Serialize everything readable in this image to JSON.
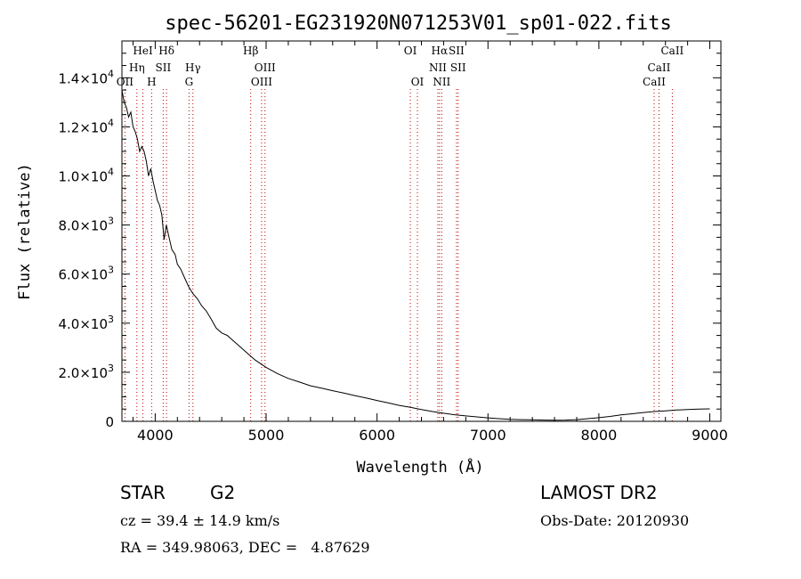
{
  "chart_data": {
    "type": "line",
    "title": "spec-56201-EG231920N071253V01_sp01-022.fits",
    "xlabel": "Wavelength (Å)",
    "ylabel": "Flux (relative)",
    "xlim": [
      3700,
      9100
    ],
    "ylim": [
      0,
      15500
    ],
    "x_ticks": [
      4000,
      5000,
      6000,
      7000,
      8000,
      9000
    ],
    "x_tick_labels": [
      "4000",
      "5000",
      "6000",
      "7000",
      "8000",
      "9000"
    ],
    "y_ticks": [
      {
        "value": 0,
        "mantissa": "0",
        "exp": ""
      },
      {
        "value": 2000,
        "mantissa": "2.0×10",
        "exp": "3"
      },
      {
        "value": 4000,
        "mantissa": "4.0×10",
        "exp": "3"
      },
      {
        "value": 6000,
        "mantissa": "6.0×10",
        "exp": "3"
      },
      {
        "value": 8000,
        "mantissa": "8.0×10",
        "exp": "3"
      },
      {
        "value": 10000,
        "mantissa": "1.0×10",
        "exp": "4"
      },
      {
        "value": 12000,
        "mantissa": "1.2×10",
        "exp": "4"
      },
      {
        "value": 14000,
        "mantissa": "1.4×10",
        "exp": "4"
      }
    ],
    "grid": false,
    "line_color": "#000000",
    "marker_color": "#c00000",
    "series": [
      {
        "x": [
          3700,
          3720,
          3740,
          3760,
          3780,
          3800,
          3820,
          3840,
          3860,
          3880,
          3900,
          3920,
          3940,
          3960,
          3980,
          4000,
          4020,
          4040,
          4060,
          4080,
          4100,
          4120,
          4150,
          4180,
          4200,
          4230,
          4260,
          4300,
          4340,
          4380,
          4420,
          4460,
          4500,
          4550,
          4600,
          4650,
          4700,
          4750,
          4800,
          4850,
          4900,
          4950,
          5000,
          5100,
          5200,
          5300,
          5400,
          5500,
          5600,
          5700,
          5800,
          5900,
          6000,
          6100,
          6200,
          6300,
          6400,
          6500,
          6600,
          6700,
          6800,
          6900,
          7000,
          7100,
          7200,
          7300,
          7400,
          7500,
          7600,
          7700,
          7800,
          7900,
          8000,
          8100,
          8200,
          8300,
          8400,
          8500,
          8600,
          8700,
          8800,
          8900,
          9000
        ],
        "y": [
          13500,
          13000,
          12800,
          12400,
          12600,
          12000,
          11800,
          11500,
          11000,
          11200,
          11000,
          10600,
          10000,
          10300,
          9800,
          9400,
          9000,
          8800,
          8400,
          7400,
          8000,
          7600,
          7000,
          6800,
          6400,
          6200,
          5900,
          5500,
          5200,
          5000,
          4700,
          4500,
          4200,
          3800,
          3600,
          3500,
          3300,
          3100,
          2900,
          2700,
          2500,
          2350,
          2200,
          1950,
          1750,
          1600,
          1450,
          1350,
          1250,
          1150,
          1050,
          950,
          850,
          750,
          650,
          570,
          480,
          400,
          330,
          270,
          220,
          180,
          140,
          110,
          80,
          70,
          60,
          50,
          45,
          50,
          70,
          110,
          150,
          200,
          260,
          310,
          360,
          400,
          430,
          460,
          480,
          500,
          510
        ]
      }
    ],
    "line_markers": [
      {
        "label": "OII",
        "x": 3727,
        "row": 2
      },
      {
        "label": "Hη",
        "x": 3835,
        "row": 1
      },
      {
        "label": "HeI",
        "x": 3889,
        "row": 0
      },
      {
        "label": "H",
        "x": 3968,
        "row": 2
      },
      {
        "label": "Hδ",
        "x": 4102,
        "row": 0
      },
      {
        "label": "SII",
        "x": 4072,
        "row": 1
      },
      {
        "label": "Hγ",
        "x": 4340,
        "row": 1
      },
      {
        "label": "G",
        "x": 4305,
        "row": 2
      },
      {
        "label": "Hβ",
        "x": 4861,
        "row": 0
      },
      {
        "label": "OIII",
        "x": 4990,
        "row": 1
      },
      {
        "label": "OIII",
        "x": 4959,
        "row": 2
      },
      {
        "label": "OI",
        "x": 6300,
        "row": 0
      },
      {
        "label": "OI",
        "x": 6364,
        "row": 2
      },
      {
        "label": "Hα",
        "x": 6563,
        "row": 0
      },
      {
        "label": "SII",
        "x": 6716,
        "row": 0
      },
      {
        "label": "NII",
        "x": 6548,
        "row": 1
      },
      {
        "label": "SII",
        "x": 6731,
        "row": 1
      },
      {
        "label": "NII",
        "x": 6583,
        "row": 2
      },
      {
        "label": "CaII",
        "x": 8662,
        "row": 0
      },
      {
        "label": "CaII",
        "x": 8542,
        "row": 1
      },
      {
        "label": "CaII",
        "x": 8498,
        "row": 2
      }
    ]
  },
  "info": {
    "object_class": "STAR",
    "subclass": "G2",
    "survey": "LAMOST DR2",
    "redshift": "cz = 39.4 ± 14.9 km/s",
    "obs_date": "Obs-Date: 20120930",
    "coords": "RA = 349.98063, DEC =   4.87629"
  }
}
